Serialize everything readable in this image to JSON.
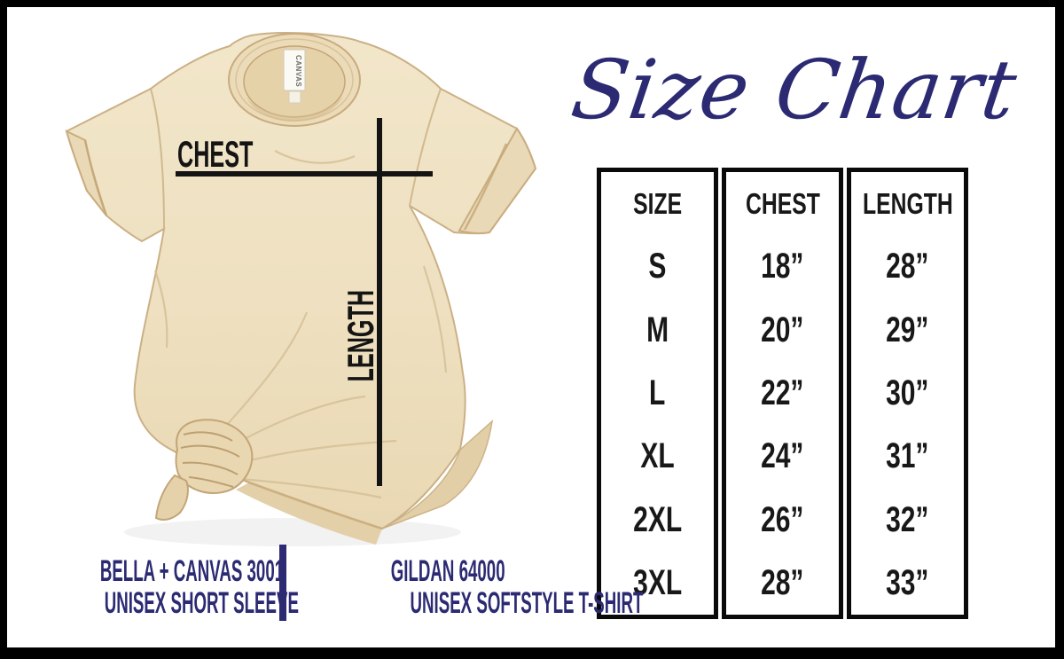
{
  "title": "Size Chart",
  "shirt": {
    "chest_label": "CHEST",
    "length_label": "LENGTH",
    "tag_text": "CANVAS"
  },
  "size_table": {
    "columns": [
      {
        "header": "SIZE",
        "values": [
          "S",
          "M",
          "L",
          "XL",
          "2XL",
          "3XL"
        ]
      },
      {
        "header": "CHEST",
        "values": [
          "18”",
          "20”",
          "22”",
          "24”",
          "26”",
          "28”"
        ]
      },
      {
        "header": "LENGTH",
        "values": [
          "28”",
          "29”",
          "30”",
          "31”",
          "32”",
          "33”"
        ]
      }
    ]
  },
  "footer": {
    "left": {
      "line1": "BELLA + CANVAS 3001",
      "line2": "UNISEX SHORT SLEEVE"
    },
    "right": {
      "line1": "GILDAN 64000",
      "line2": "UNISEX SOFTSTYLE T-SHIRT"
    }
  },
  "colors": {
    "navy": "#2b2a72",
    "line_black": "#141414",
    "shirt_cream": "#efe1c3",
    "shirt_shadow": "#d9c49a",
    "border_black": "#000000"
  },
  "chart_data": {
    "type": "table",
    "title": "Size Chart",
    "columns": [
      "SIZE",
      "CHEST",
      "LENGTH"
    ],
    "rows": [
      [
        "S",
        "18”",
        "28”"
      ],
      [
        "M",
        "20”",
        "29”"
      ],
      [
        "L",
        "22”",
        "30”"
      ],
      [
        "XL",
        "24”",
        "31”"
      ],
      [
        "2XL",
        "26”",
        "32”"
      ],
      [
        "3XL",
        "28”",
        "33”"
      ]
    ]
  }
}
